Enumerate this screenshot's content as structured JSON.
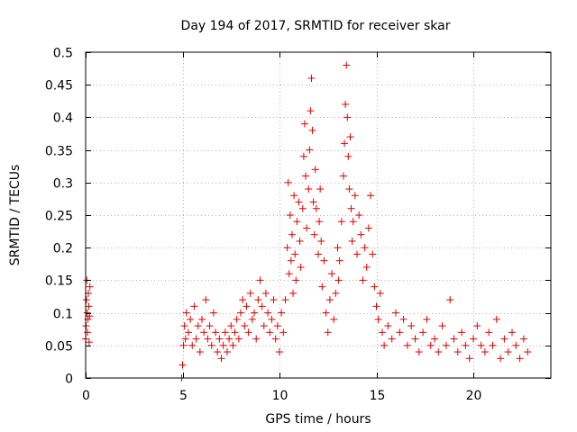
{
  "chart_data": {
    "type": "scatter",
    "title": "Day 194 of 2017, SRMTID for receiver skar",
    "xlabel": "GPS time / hours",
    "ylabel": "SRMTID / TECUs",
    "xlim": [
      0,
      24
    ],
    "ylim": [
      0,
      0.5
    ],
    "xticks": [
      0,
      5,
      10,
      15,
      20
    ],
    "xtick_labels": [
      "0",
      "5",
      "10",
      "15",
      "20"
    ],
    "yticks": [
      0,
      0.05,
      0.1,
      0.15,
      0.2,
      0.25,
      0.3,
      0.35,
      0.4,
      0.45,
      0.5
    ],
    "ytick_labels": [
      "0",
      "0.05",
      "0.1",
      "0.15",
      "0.2",
      "0.25",
      "0.3",
      "0.35",
      "0.4",
      "0.45",
      "0.5"
    ],
    "grid": true,
    "marker": "+",
    "series": [
      {
        "name": "SRMTID",
        "color": "#dd0000",
        "points": [
          [
            0.0,
            0.06
          ],
          [
            0.02,
            0.08
          ],
          [
            0.04,
            0.12
          ],
          [
            0.06,
            0.15
          ],
          [
            0.08,
            0.1
          ],
          [
            0.1,
            0.07
          ],
          [
            0.12,
            0.09
          ],
          [
            0.14,
            0.13
          ],
          [
            0.16,
            0.11
          ],
          [
            0.18,
            0.055
          ],
          [
            0.2,
            0.095
          ],
          [
            0.22,
            0.14
          ],
          [
            4.95,
            0.0
          ],
          [
            5.0,
            0.02
          ],
          [
            5.05,
            0.05
          ],
          [
            5.1,
            0.08
          ],
          [
            5.15,
            0.06
          ],
          [
            5.2,
            0.1
          ],
          [
            5.3,
            0.07
          ],
          [
            5.4,
            0.09
          ],
          [
            5.5,
            0.05
          ],
          [
            5.6,
            0.11
          ],
          [
            5.7,
            0.06
          ],
          [
            5.8,
            0.08
          ],
          [
            5.9,
            0.04
          ],
          [
            6.0,
            0.09
          ],
          [
            6.1,
            0.07
          ],
          [
            6.2,
            0.12
          ],
          [
            6.3,
            0.06
          ],
          [
            6.4,
            0.08
          ],
          [
            6.5,
            0.05
          ],
          [
            6.6,
            0.1
          ],
          [
            6.7,
            0.07
          ],
          [
            6.8,
            0.04
          ],
          [
            6.9,
            0.06
          ],
          [
            7.0,
            0.03
          ],
          [
            7.1,
            0.05
          ],
          [
            7.2,
            0.07
          ],
          [
            7.3,
            0.04
          ],
          [
            7.4,
            0.06
          ],
          [
            7.5,
            0.08
          ],
          [
            7.6,
            0.05
          ],
          [
            7.7,
            0.07
          ],
          [
            7.8,
            0.09
          ],
          [
            7.9,
            0.06
          ],
          [
            8.0,
            0.1
          ],
          [
            8.1,
            0.12
          ],
          [
            8.2,
            0.08
          ],
          [
            8.3,
            0.11
          ],
          [
            8.4,
            0.07
          ],
          [
            8.5,
            0.13
          ],
          [
            8.6,
            0.09
          ],
          [
            8.7,
            0.1
          ],
          [
            8.8,
            0.06
          ],
          [
            8.9,
            0.12
          ],
          [
            9.0,
            0.15
          ],
          [
            9.1,
            0.11
          ],
          [
            9.2,
            0.08
          ],
          [
            9.3,
            0.13
          ],
          [
            9.4,
            0.1
          ],
          [
            9.5,
            0.07
          ],
          [
            9.6,
            0.09
          ],
          [
            9.7,
            0.12
          ],
          [
            9.8,
            0.06
          ],
          [
            9.9,
            0.08
          ],
          [
            10.0,
            0.04
          ],
          [
            10.1,
            0.1
          ],
          [
            10.2,
            0.07
          ],
          [
            10.3,
            0.12
          ],
          [
            10.4,
            0.2
          ],
          [
            10.45,
            0.3
          ],
          [
            10.5,
            0.16
          ],
          [
            10.55,
            0.25
          ],
          [
            10.6,
            0.18
          ],
          [
            10.65,
            0.22
          ],
          [
            10.7,
            0.13
          ],
          [
            10.75,
            0.28
          ],
          [
            10.8,
            0.19
          ],
          [
            10.85,
            0.15
          ],
          [
            10.9,
            0.24
          ],
          [
            11.0,
            0.27
          ],
          [
            11.05,
            0.21
          ],
          [
            11.1,
            0.17
          ],
          [
            11.2,
            0.26
          ],
          [
            11.25,
            0.34
          ],
          [
            11.3,
            0.39
          ],
          [
            11.35,
            0.31
          ],
          [
            11.4,
            0.23
          ],
          [
            11.5,
            0.29
          ],
          [
            11.55,
            0.35
          ],
          [
            11.6,
            0.41
          ],
          [
            11.65,
            0.46
          ],
          [
            11.7,
            0.38
          ],
          [
            11.75,
            0.27
          ],
          [
            11.8,
            0.22
          ],
          [
            11.85,
            0.32
          ],
          [
            11.9,
            0.26
          ],
          [
            12.0,
            0.19
          ],
          [
            12.05,
            0.24
          ],
          [
            12.1,
            0.29
          ],
          [
            12.15,
            0.21
          ],
          [
            12.2,
            0.14
          ],
          [
            12.3,
            0.18
          ],
          [
            12.4,
            0.1
          ],
          [
            12.5,
            0.07
          ],
          [
            12.6,
            0.12
          ],
          [
            12.7,
            0.16
          ],
          [
            12.8,
            0.09
          ],
          [
            12.9,
            0.13
          ],
          [
            13.0,
            0.2
          ],
          [
            13.05,
            0.15
          ],
          [
            13.1,
            0.18
          ],
          [
            13.2,
            0.24
          ],
          [
            13.3,
            0.31
          ],
          [
            13.35,
            0.36
          ],
          [
            13.4,
            0.42
          ],
          [
            13.45,
            0.48
          ],
          [
            13.5,
            0.4
          ],
          [
            13.55,
            0.34
          ],
          [
            13.6,
            0.29
          ],
          [
            13.65,
            0.37
          ],
          [
            13.7,
            0.26
          ],
          [
            13.75,
            0.21
          ],
          [
            13.8,
            0.24
          ],
          [
            13.9,
            0.28
          ],
          [
            14.0,
            0.19
          ],
          [
            14.1,
            0.25
          ],
          [
            14.2,
            0.22
          ],
          [
            14.3,
            0.15
          ],
          [
            14.4,
            0.2
          ],
          [
            14.5,
            0.17
          ],
          [
            14.6,
            0.23
          ],
          [
            14.7,
            0.28
          ],
          [
            14.8,
            0.19
          ],
          [
            14.9,
            0.14
          ],
          [
            15.0,
            0.11
          ],
          [
            15.1,
            0.09
          ],
          [
            15.2,
            0.13
          ],
          [
            15.3,
            0.07
          ],
          [
            15.4,
            0.05
          ],
          [
            15.6,
            0.08
          ],
          [
            15.8,
            0.06
          ],
          [
            16.0,
            0.1
          ],
          [
            16.2,
            0.07
          ],
          [
            16.4,
            0.09
          ],
          [
            16.6,
            0.05
          ],
          [
            16.8,
            0.08
          ],
          [
            17.0,
            0.06
          ],
          [
            17.2,
            0.04
          ],
          [
            17.4,
            0.07
          ],
          [
            17.6,
            0.09
          ],
          [
            17.8,
            0.05
          ],
          [
            18.0,
            0.06
          ],
          [
            18.2,
            0.04
          ],
          [
            18.4,
            0.08
          ],
          [
            18.6,
            0.05
          ],
          [
            18.8,
            0.12
          ],
          [
            19.0,
            0.06
          ],
          [
            19.2,
            0.04
          ],
          [
            19.4,
            0.07
          ],
          [
            19.6,
            0.05
          ],
          [
            19.8,
            0.03
          ],
          [
            20.0,
            0.06
          ],
          [
            20.2,
            0.08
          ],
          [
            20.4,
            0.05
          ],
          [
            20.6,
            0.04
          ],
          [
            20.8,
            0.07
          ],
          [
            21.0,
            0.05
          ],
          [
            21.2,
            0.09
          ],
          [
            21.4,
            0.03
          ],
          [
            21.6,
            0.06
          ],
          [
            21.8,
            0.04
          ],
          [
            22.0,
            0.07
          ],
          [
            22.2,
            0.05
          ],
          [
            22.4,
            0.03
          ],
          [
            22.6,
            0.06
          ],
          [
            22.8,
            0.04
          ]
        ]
      }
    ]
  }
}
